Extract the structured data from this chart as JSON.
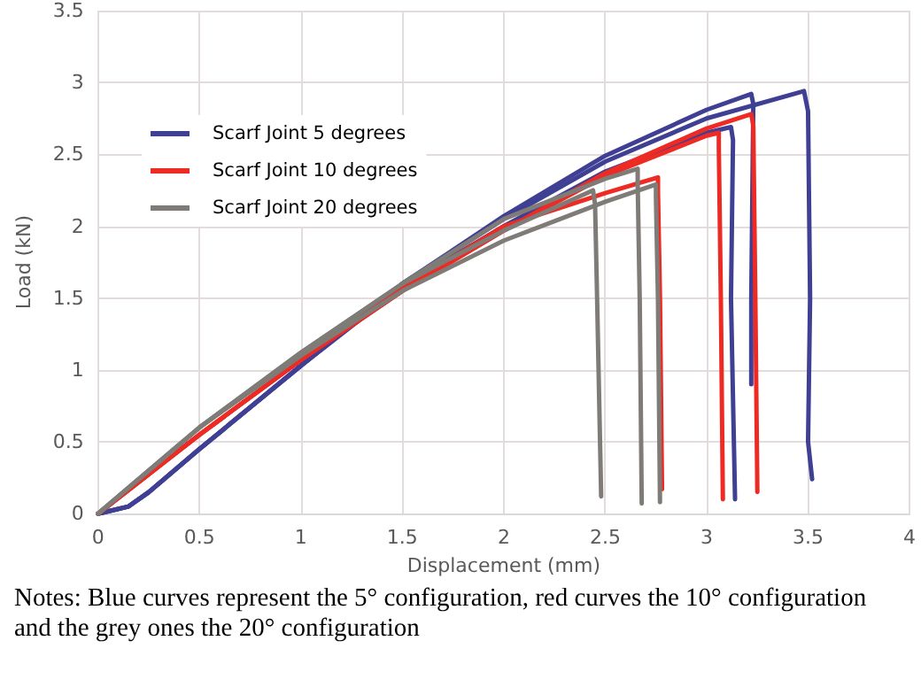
{
  "chart_data": {
    "type": "line",
    "xlabel": "Displacement (mm)",
    "ylabel": "Load (kN)",
    "xlim": [
      0,
      4
    ],
    "xticks": [
      0,
      0.5,
      1,
      1.5,
      2,
      2.5,
      3,
      3.5,
      4
    ],
    "ylim": [
      0,
      3.5
    ],
    "yticks": [
      0,
      0.5,
      1,
      1.5,
      2,
      2.5,
      3,
      3.5
    ],
    "grid": true,
    "legend": "top left",
    "marker": "none",
    "line_style": "solid",
    "annotations": [
      "Notes: Blue curves represent the 5° configuration, red curves the 10° configuration and the grey ones the 20° configuration"
    ],
    "series": [
      {
        "name": "Scarf Joint 5 degrees",
        "color": "#3f3f94",
        "x": [
          0,
          0.15,
          0.25,
          0.5,
          1,
          1.5,
          2,
          2.5,
          3,
          3.48,
          3.5,
          3.51,
          3.5,
          3.52
        ],
        "values": [
          0,
          0.05,
          0.15,
          0.45,
          1.03,
          1.6,
          2.05,
          2.45,
          2.75,
          2.94,
          2.8,
          1.5,
          0.5,
          0.24
        ]
      },
      {
        "color": "#3f3f94",
        "x": [
          0,
          0.15,
          0.25,
          0.5,
          1,
          1.5,
          2,
          2.5,
          3,
          3.22,
          3.23,
          3.22,
          3.22
        ],
        "values": [
          0,
          0.05,
          0.15,
          0.45,
          1.03,
          1.6,
          2.07,
          2.49,
          2.81,
          2.92,
          2.85,
          1.5,
          0.9
        ]
      },
      {
        "color": "#3f3f94",
        "x": [
          0,
          0.15,
          0.25,
          0.5,
          1,
          1.5,
          2,
          2.5,
          3,
          3.12,
          3.13,
          3.12,
          3.14
        ],
        "values": [
          0,
          0.05,
          0.15,
          0.45,
          1.03,
          1.58,
          2.0,
          2.38,
          2.65,
          2.69,
          2.6,
          1.5,
          0.1
        ]
      },
      {
        "name": "Scarf Joint 10 degrees",
        "color": "#ee2a24",
        "x": [
          0,
          0.5,
          1,
          1.5,
          2,
          2.5,
          3,
          3.22,
          3.23,
          3.24,
          3.25
        ],
        "values": [
          0,
          0.55,
          1.07,
          1.55,
          1.97,
          2.37,
          2.68,
          2.78,
          2.7,
          1.5,
          0.15
        ]
      },
      {
        "color": "#ee2a24",
        "x": [
          0,
          0.5,
          1,
          1.5,
          2,
          2.5,
          3,
          3.06,
          3.06,
          3.07,
          3.08
        ],
        "values": [
          0,
          0.55,
          1.07,
          1.55,
          1.97,
          2.35,
          2.63,
          2.65,
          2.55,
          1.5,
          0.1
        ]
      },
      {
        "color": "#ee2a24",
        "x": [
          0,
          0.5,
          1,
          1.5,
          2,
          2.5,
          2.76,
          2.76,
          2.77,
          2.78
        ],
        "values": [
          0,
          0.55,
          1.07,
          1.57,
          2.0,
          2.23,
          2.34,
          2.25,
          1.5,
          0.17
        ]
      },
      {
        "name": "Scarf Joint 20 degrees",
        "color": "#7f7b77",
        "x": [
          0,
          0.5,
          1,
          1.5,
          2,
          2.5,
          2.66,
          2.66,
          2.67,
          2.68
        ],
        "values": [
          0,
          0.6,
          1.12,
          1.6,
          2.05,
          2.33,
          2.4,
          2.3,
          1.5,
          0.07
        ]
      },
      {
        "color": "#7f7b77",
        "x": [
          0,
          0.5,
          1,
          1.5,
          2,
          2.5,
          2.75,
          2.75,
          2.76,
          2.77
        ],
        "values": [
          0,
          0.6,
          1.1,
          1.55,
          1.9,
          2.17,
          2.29,
          2.2,
          1.5,
          0.08
        ]
      },
      {
        "color": "#7f7b77",
        "x": [
          0,
          0.5,
          1,
          1.5,
          2,
          2.44,
          2.45,
          2.46,
          2.48
        ],
        "values": [
          0,
          0.6,
          1.12,
          1.6,
          1.97,
          2.25,
          2.15,
          1.5,
          0.12
        ]
      }
    ]
  }
}
